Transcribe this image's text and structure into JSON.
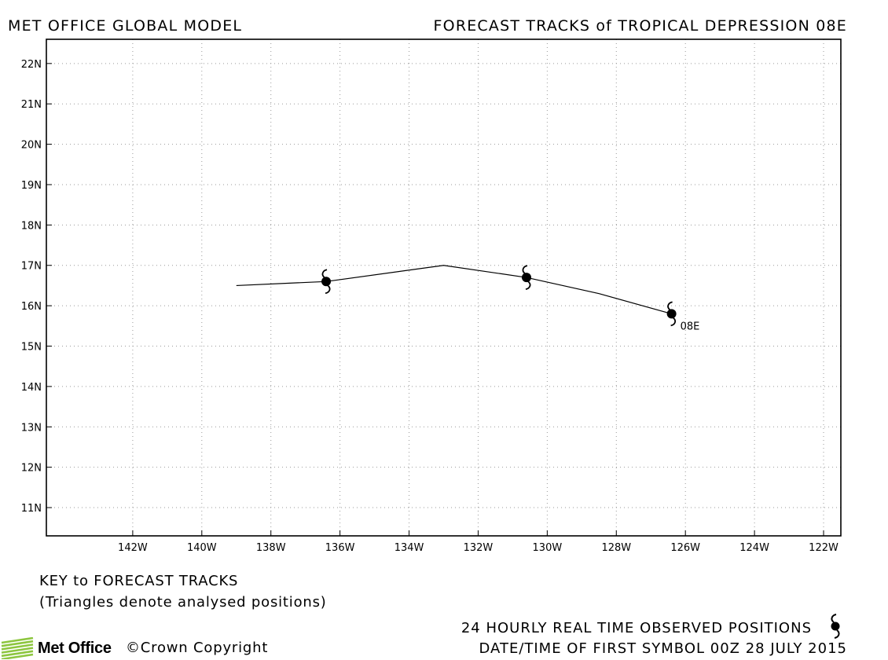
{
  "header": {
    "left": "MET OFFICE GLOBAL MODEL",
    "right": "FORECAST TRACKS of TROPICAL DEPRESSION 08E"
  },
  "chart_data": {
    "type": "line",
    "title": "FORECAST TRACKS of TROPICAL DEPRESSION 08E",
    "xlabel": "",
    "ylabel": "",
    "xlim": [
      -144.5,
      -121.5
    ],
    "ylim": [
      10.3,
      22.6
    ],
    "grid": true,
    "x_ticks": [
      -142,
      -140,
      -138,
      -136,
      -134,
      -132,
      -130,
      -128,
      -126,
      -124,
      -122
    ],
    "x_tick_labels": [
      "142W",
      "140W",
      "138W",
      "136W",
      "134W",
      "132W",
      "130W",
      "128W",
      "126W",
      "124W",
      "122W"
    ],
    "y_ticks": [
      11,
      12,
      13,
      14,
      15,
      16,
      17,
      18,
      19,
      20,
      21,
      22
    ],
    "y_tick_labels": [
      "11N",
      "12N",
      "13N",
      "14N",
      "15N",
      "16N",
      "17N",
      "18N",
      "19N",
      "20N",
      "21N",
      "22N"
    ],
    "series": [
      {
        "lon": [
          -126.4,
          -128.5,
          -130.6,
          -133.0,
          -136.4,
          -139.0
        ],
        "lat": [
          15.8,
          16.3,
          16.7,
          17.0,
          16.6,
          16.5
        ]
      }
    ],
    "symbols": [
      {
        "lon": -126.4,
        "lat": 15.8
      },
      {
        "lon": -130.6,
        "lat": 16.7
      },
      {
        "lon": -136.4,
        "lat": 16.6
      }
    ],
    "storm_label": {
      "text": "08E",
      "lon": -126.4,
      "lat": 15.8
    }
  },
  "key": {
    "title": "KEY to FORECAST TRACKS",
    "note": "(Triangles denote analysed positions)"
  },
  "footer": {
    "observed": "24 HOURLY REAL TIME OBSERVED POSITIONS",
    "datetime": "DATE/TIME OF FIRST SYMBOL 00Z 28 JULY 2015"
  },
  "logo": {
    "text": "Met Office",
    "accent_color": "#8dc63f"
  },
  "copyright": "©Crown Copyright"
}
